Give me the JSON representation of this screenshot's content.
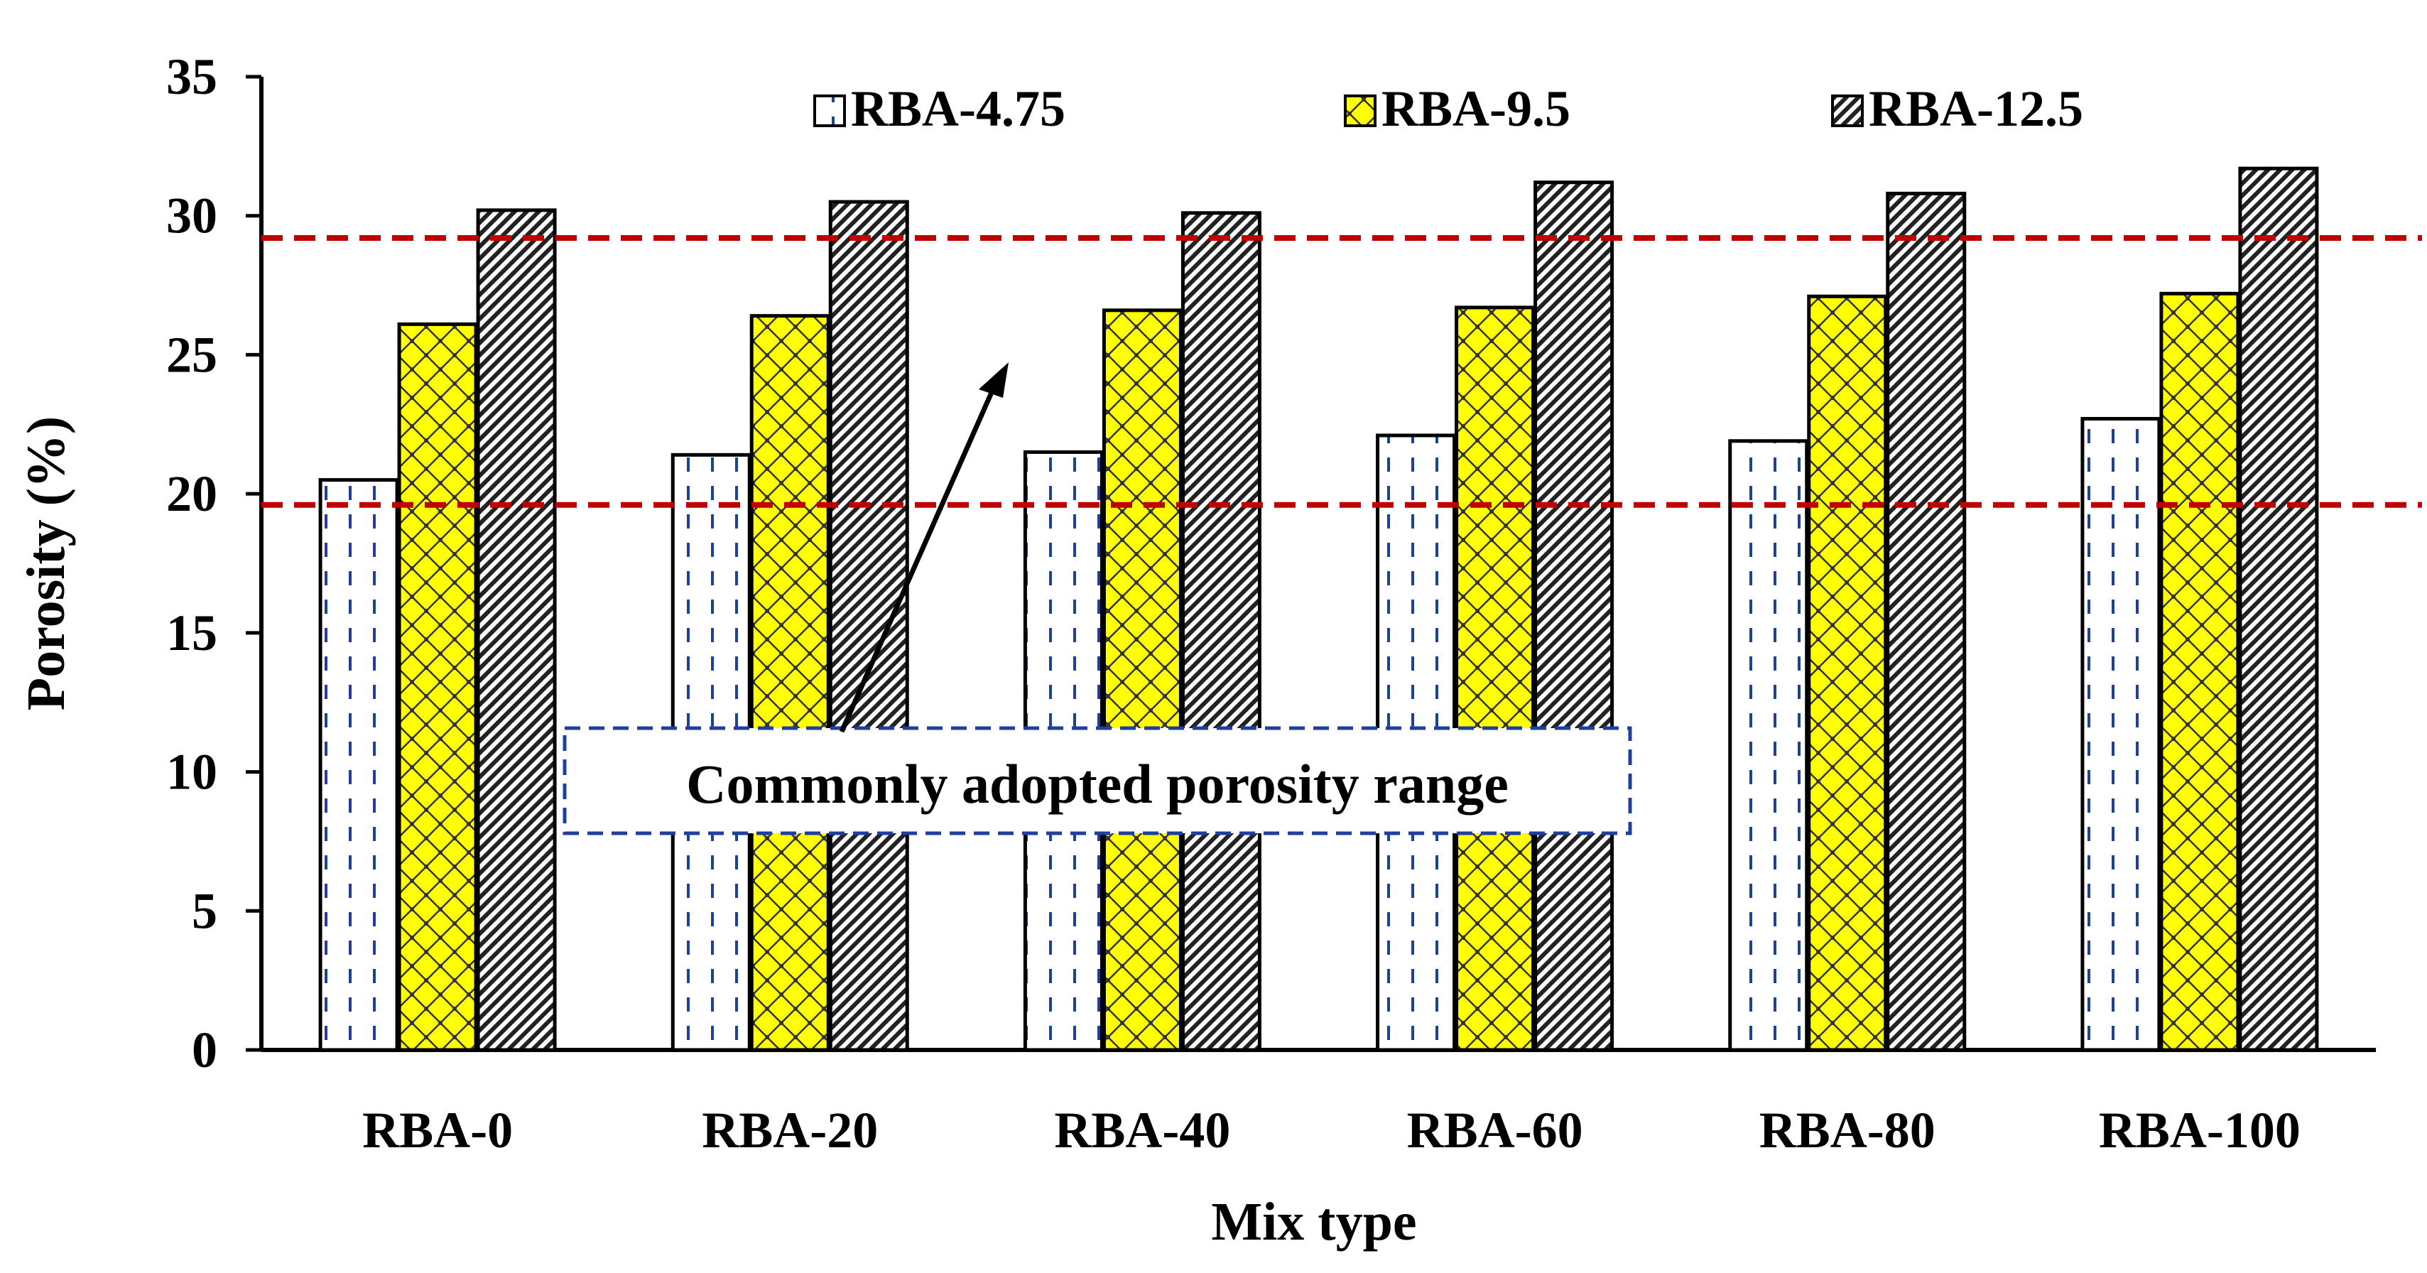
{
  "chart_data": {
    "type": "bar",
    "title": "",
    "xlabel": "Mix type",
    "ylabel": "Porosity (%)",
    "ylim": [
      0,
      35
    ],
    "yticks": [
      0,
      5,
      10,
      15,
      20,
      25,
      30,
      35
    ],
    "grid": false,
    "legend_position": "top",
    "categories": [
      "RBA-0",
      "RBA-20",
      "RBA-40",
      "RBA-60",
      "RBA-80",
      "RBA-100"
    ],
    "series": [
      {
        "name": "RBA-4.75",
        "values": [
          20.5,
          21.4,
          21.5,
          22.1,
          21.9,
          22.7
        ],
        "color": "#ffffff",
        "pattern": "dashed-blue"
      },
      {
        "name": "RBA-9.5",
        "values": [
          26.1,
          26.4,
          26.6,
          26.7,
          27.1,
          27.2
        ],
        "color": "#ffff00",
        "pattern": "diamond-lattice"
      },
      {
        "name": "RBA-12.5",
        "values": [
          30.2,
          30.5,
          30.1,
          31.2,
          30.8,
          31.7
        ],
        "color": "#ffffff",
        "pattern": "diagonal-hatch"
      }
    ],
    "reference_lines": [
      {
        "y": 29.2,
        "color": "#c00000",
        "style": "dashed"
      },
      {
        "y": 19.6,
        "color": "#c00000",
        "style": "dashed"
      }
    ],
    "annotation": {
      "text": "Commonly adopted porosity range",
      "box_color": "#1f3f9f"
    }
  }
}
